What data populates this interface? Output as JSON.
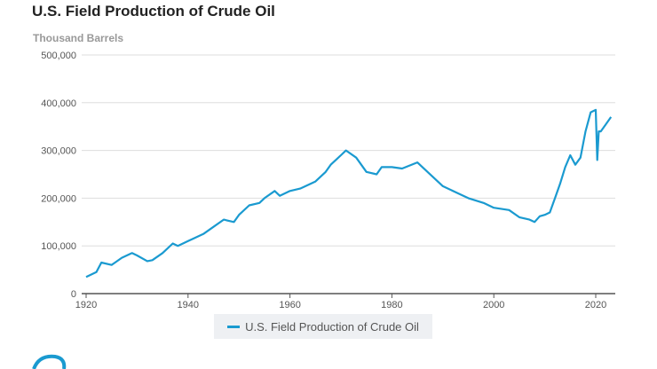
{
  "chart_data": {
    "type": "line",
    "title": "U.S. Field Production of Crude Oil",
    "ylabel": "Thousand Barrels",
    "xlabel": "",
    "xlim": [
      1920,
      2024
    ],
    "ylim": [
      0,
      500000
    ],
    "x_ticks": [
      "1920",
      "1940",
      "1960",
      "1980",
      "2000",
      "2020"
    ],
    "y_ticks": [
      "0",
      "100,000",
      "200,000",
      "300,000",
      "400,000",
      "500,000"
    ],
    "grid": "horizontal",
    "legend_placement": "bottom",
    "series": [
      {
        "name": "U.S. Field Production of Crude Oil",
        "color": "#1a9ad0",
        "x": [
          1920,
          1922,
          1923,
          1925,
          1927,
          1929,
          1930,
          1932,
          1933,
          1935,
          1937,
          1938,
          1940,
          1941,
          1943,
          1945,
          1947,
          1949,
          1950,
          1952,
          1954,
          1955,
          1957,
          1958,
          1960,
          1962,
          1965,
          1967,
          1968,
          1970,
          1971,
          1973,
          1975,
          1977,
          1978,
          1980,
          1982,
          1985,
          1986,
          1988,
          1990,
          1993,
          1995,
          1998,
          2000,
          2003,
          2005,
          2007,
          2008,
          2009,
          2010,
          2011,
          2012,
          2013,
          2014,
          2015,
          2016,
          2017,
          2018,
          2019,
          2020,
          2020.3,
          2020.6,
          2021,
          2022,
          2023
        ],
        "values": [
          35000,
          45000,
          65000,
          60000,
          75000,
          85000,
          80000,
          68000,
          70000,
          85000,
          105000,
          100000,
          110000,
          115000,
          125000,
          140000,
          155000,
          150000,
          165000,
          185000,
          190000,
          200000,
          215000,
          205000,
          215000,
          220000,
          235000,
          255000,
          270000,
          290000,
          300000,
          285000,
          255000,
          250000,
          265000,
          265000,
          262000,
          275000,
          265000,
          245000,
          225000,
          210000,
          200000,
          190000,
          180000,
          175000,
          160000,
          155000,
          150000,
          162000,
          165000,
          170000,
          200000,
          230000,
          265000,
          290000,
          270000,
          285000,
          340000,
          380000,
          385000,
          280000,
          340000,
          340000,
          355000,
          370000
        ]
      }
    ]
  },
  "legend": {
    "label": "U.S. Field Production of Crude Oil"
  },
  "colors": {
    "series": "#1a9ad0",
    "logo": "#1a9ad0"
  }
}
